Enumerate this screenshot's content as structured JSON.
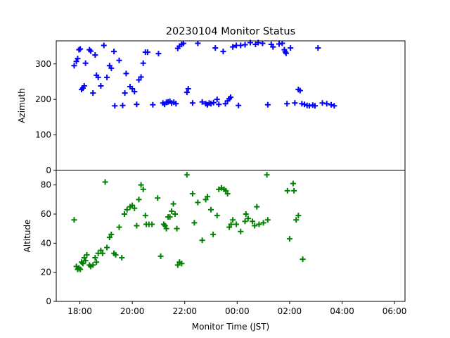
{
  "chart_data": {
    "type": "scatter",
    "title": "20230104 Monitor Status",
    "xlabel": "Monitor Time (JST)",
    "x_ticks": [
      "18:00",
      "20:00",
      "22:00",
      "00:00",
      "02:00",
      "04:00",
      "06:00"
    ],
    "xlim": [
      "17:06",
      "06:24"
    ],
    "panels": [
      {
        "ylabel": "Azimuth",
        "ylim": [
          0,
          365
        ],
        "y_ticks": [
          0,
          100,
          200,
          300
        ],
        "marker": "+",
        "color": "#0000ff",
        "points": [
          [
            "17:47",
            295
          ],
          [
            "17:52",
            307
          ],
          [
            "17:55",
            315
          ],
          [
            "17:58",
            340
          ],
          [
            "18:01",
            342
          ],
          [
            "18:04",
            228
          ],
          [
            "18:07",
            232
          ],
          [
            "18:10",
            238
          ],
          [
            "18:13",
            302
          ],
          [
            "18:22",
            340
          ],
          [
            "18:25",
            336
          ],
          [
            "18:30",
            218
          ],
          [
            "18:35",
            325
          ],
          [
            "18:38",
            268
          ],
          [
            "18:42",
            262
          ],
          [
            "18:48",
            238
          ],
          [
            "18:55",
            352
          ],
          [
            "19:02",
            262
          ],
          [
            "19:08",
            295
          ],
          [
            "19:12",
            288
          ],
          [
            "19:18",
            335
          ],
          [
            "19:20",
            182
          ],
          [
            "19:30",
            310
          ],
          [
            "19:38",
            183
          ],
          [
            "19:43",
            218
          ],
          [
            "19:46",
            273
          ],
          [
            "19:55",
            236
          ],
          [
            "20:00",
            230
          ],
          [
            "20:05",
            222
          ],
          [
            "20:10",
            186
          ],
          [
            "20:15",
            255
          ],
          [
            "20:20",
            263
          ],
          [
            "20:25",
            302
          ],
          [
            "20:30",
            333
          ],
          [
            "20:35",
            333
          ],
          [
            "20:47",
            185
          ],
          [
            "21:00",
            329
          ],
          [
            "21:10",
            190
          ],
          [
            "21:14",
            186
          ],
          [
            "21:18",
            192
          ],
          [
            "21:22",
            193
          ],
          [
            "21:26",
            195
          ],
          [
            "21:30",
            190
          ],
          [
            "21:35",
            192
          ],
          [
            "21:40",
            188
          ],
          [
            "21:44",
            344
          ],
          [
            "21:48",
            350
          ],
          [
            "21:53",
            355
          ],
          [
            "21:57",
            358
          ],
          [
            "22:05",
            220
          ],
          [
            "22:08",
            230
          ],
          [
            "22:18",
            190
          ],
          [
            "22:30",
            358
          ],
          [
            "22:40",
            193
          ],
          [
            "22:48",
            188
          ],
          [
            "22:52",
            185
          ],
          [
            "22:56",
            190
          ],
          [
            "23:00",
            188
          ],
          [
            "23:06",
            191
          ],
          [
            "23:10",
            345
          ],
          [
            "23:14",
            200
          ],
          [
            "23:18",
            186
          ],
          [
            "23:28",
            335
          ],
          [
            "23:33",
            188
          ],
          [
            "23:38",
            196
          ],
          [
            "23:42",
            202
          ],
          [
            "23:45",
            206
          ],
          [
            "23:50",
            348
          ],
          [
            "23:58",
            352
          ],
          [
            "24:03",
            183
          ],
          [
            "24:08",
            352
          ],
          [
            "24:18",
            354
          ],
          [
            "24:30",
            360
          ],
          [
            "24:42",
            355
          ],
          [
            "24:48",
            360
          ],
          [
            "24:58",
            358
          ],
          [
            "25:10",
            185
          ],
          [
            "25:18",
            355
          ],
          [
            "25:22",
            348
          ],
          [
            "25:36",
            356
          ],
          [
            "25:43",
            358
          ],
          [
            "25:48",
            340
          ],
          [
            "25:50",
            334
          ],
          [
            "25:52",
            330
          ],
          [
            "25:54",
            188
          ],
          [
            "26:02",
            345
          ],
          [
            "26:12",
            190
          ],
          [
            "26:20",
            228
          ],
          [
            "26:24",
            225
          ],
          [
            "26:28",
            188
          ],
          [
            "26:34",
            186
          ],
          [
            "26:40",
            183
          ],
          [
            "26:45",
            182
          ],
          [
            "26:53",
            184
          ],
          [
            "26:58",
            182
          ],
          [
            "27:05",
            345
          ],
          [
            "27:15",
            190
          ],
          [
            "27:25",
            188
          ],
          [
            "27:35",
            185
          ],
          [
            "27:42",
            182
          ]
        ]
      },
      {
        "ylabel": "Altitude",
        "ylim": [
          0,
          90
        ],
        "y_ticks": [
          0,
          20,
          40,
          60,
          80
        ],
        "marker": "+",
        "color": "#008000",
        "points": [
          [
            "17:47",
            56
          ],
          [
            "17:52",
            24
          ],
          [
            "17:55",
            22
          ],
          [
            "17:58",
            23
          ],
          [
            "18:01",
            22
          ],
          [
            "18:04",
            27
          ],
          [
            "18:07",
            26
          ],
          [
            "18:10",
            30
          ],
          [
            "18:13",
            28
          ],
          [
            "18:16",
            32
          ],
          [
            "18:22",
            25
          ],
          [
            "18:25",
            24
          ],
          [
            "18:30",
            25
          ],
          [
            "18:35",
            30
          ],
          [
            "18:38",
            27
          ],
          [
            "18:42",
            33
          ],
          [
            "18:48",
            35
          ],
          [
            "18:52",
            33
          ],
          [
            "18:58",
            82
          ],
          [
            "19:02",
            37
          ],
          [
            "19:08",
            44
          ],
          [
            "19:12",
            46
          ],
          [
            "19:18",
            33
          ],
          [
            "19:22",
            32
          ],
          [
            "19:30",
            51
          ],
          [
            "19:36",
            30
          ],
          [
            "19:42",
            60
          ],
          [
            "19:48",
            63
          ],
          [
            "19:55",
            65
          ],
          [
            "20:00",
            66
          ],
          [
            "20:05",
            64
          ],
          [
            "20:10",
            52
          ],
          [
            "20:15",
            70
          ],
          [
            "20:20",
            80
          ],
          [
            "20:25",
            77
          ],
          [
            "20:30",
            59
          ],
          [
            "20:32",
            53
          ],
          [
            "20:38",
            53
          ],
          [
            "20:45",
            53
          ],
          [
            "20:58",
            71
          ],
          [
            "21:05",
            31
          ],
          [
            "21:12",
            53
          ],
          [
            "21:15",
            52
          ],
          [
            "21:18",
            50
          ],
          [
            "21:22",
            58
          ],
          [
            "21:26",
            58
          ],
          [
            "21:30",
            62
          ],
          [
            "21:34",
            67
          ],
          [
            "21:38",
            60
          ],
          [
            "21:42",
            50
          ],
          [
            "21:44",
            25
          ],
          [
            "21:48",
            27
          ],
          [
            "21:53",
            26
          ],
          [
            "22:05",
            87
          ],
          [
            "22:18",
            74
          ],
          [
            "22:22",
            54
          ],
          [
            "22:30",
            68
          ],
          [
            "22:40",
            42
          ],
          [
            "22:48",
            70
          ],
          [
            "22:52",
            72
          ],
          [
            "23:00",
            63
          ],
          [
            "23:05",
            46
          ],
          [
            "23:14",
            59
          ],
          [
            "23:18",
            77
          ],
          [
            "23:24",
            78
          ],
          [
            "23:30",
            77
          ],
          [
            "23:34",
            76
          ],
          [
            "23:38",
            74
          ],
          [
            "23:42",
            51
          ],
          [
            "23:46",
            53
          ],
          [
            "23:50",
            56
          ],
          [
            "23:58",
            53
          ],
          [
            "24:08",
            48
          ],
          [
            "24:18",
            55
          ],
          [
            "24:20",
            60
          ],
          [
            "24:25",
            57
          ],
          [
            "24:35",
            55
          ],
          [
            "24:40",
            52
          ],
          [
            "24:45",
            65
          ],
          [
            "24:50",
            53
          ],
          [
            "25:00",
            54
          ],
          [
            "25:08",
            87
          ],
          [
            "25:10",
            56
          ],
          [
            "25:55",
            76
          ],
          [
            "26:00",
            43
          ],
          [
            "26:08",
            81
          ],
          [
            "26:10",
            76
          ],
          [
            "26:15",
            56
          ],
          [
            "26:20",
            59
          ],
          [
            "26:30",
            29
          ]
        ]
      }
    ]
  }
}
